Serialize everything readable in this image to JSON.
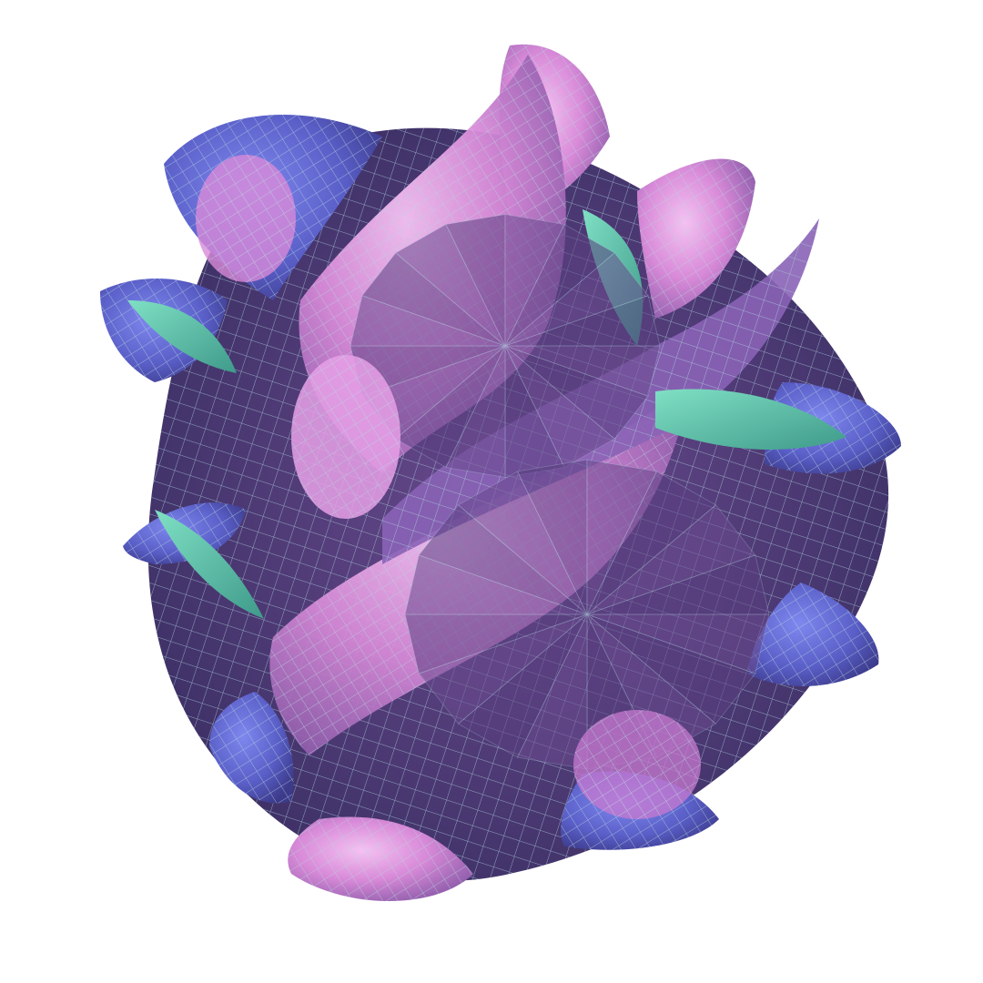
{
  "figure": {
    "subject": "calabi-yau-manifold-surface",
    "render_style": "wireframe-mesh-shaded",
    "outer_lobes": 10,
    "star_centers": 2,
    "colors": {
      "background": "#ffffff",
      "deep_indigo": "#3a2f63",
      "dark_purple": "#4a3a72",
      "mid_purple": "#6a4a8e",
      "violet": "#8a63b6",
      "magenta": "#b660b8",
      "pink": "#e6a0e6",
      "light_pink": "#f4c2f2",
      "blue": "#5a64d8",
      "periwinkle": "#7e88ee",
      "teal": "#5cc7a8",
      "mint": "#7fe0c4",
      "mesh_line": "#a8c8d8"
    }
  }
}
